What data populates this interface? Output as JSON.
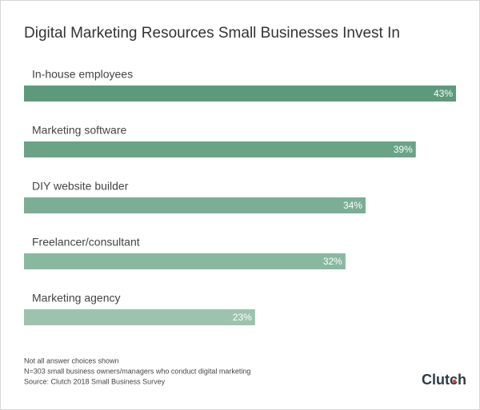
{
  "chart_data": {
    "type": "bar",
    "orientation": "horizontal",
    "title": "Digital Marketing Resources Small Businesses Invest In",
    "categories": [
      "In-house employees",
      "Marketing software",
      "DIY website builder",
      "Freelancer/consultant",
      "Marketing agency"
    ],
    "values": [
      43,
      39,
      34,
      32,
      23
    ],
    "value_labels": [
      "43%",
      "39%",
      "34%",
      "32%",
      "23%"
    ],
    "colors": [
      "#5c9a7b",
      "#6aa386",
      "#7bae94",
      "#89b8a0",
      "#9dc2ae"
    ],
    "notes": [
      "Not all answer choices shown",
      "N=303 small business owners/managers who conduct digital marketing",
      "Source: Clutch 2018 Small Business Survey"
    ],
    "brand": "Clutch"
  }
}
